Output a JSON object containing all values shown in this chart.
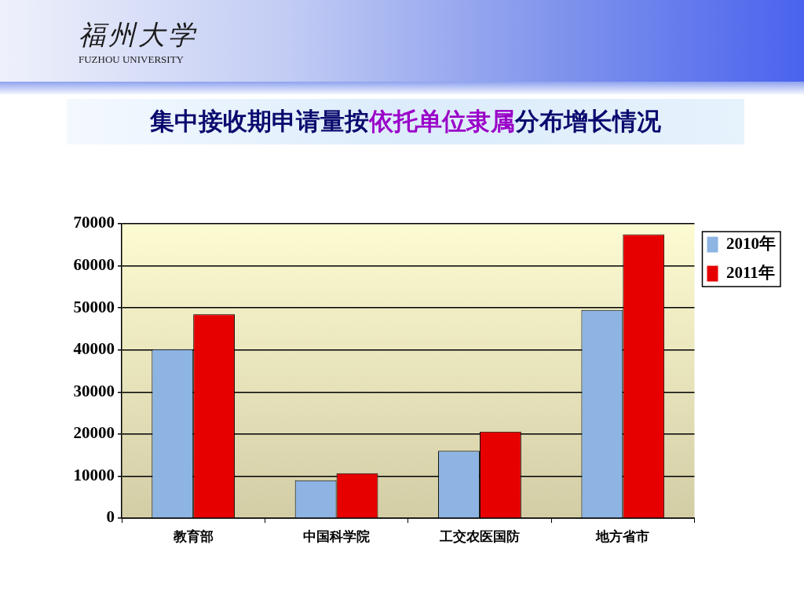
{
  "chart_data": {
    "type": "bar",
    "title": "集中接收期申请量按依托单位隶属分布增长情况",
    "annotations": [
      "福州大学",
      "FUZHOU UNIVERSITY"
    ],
    "categories": [
      "教育部",
      "中国科学院",
      "工交农医国防",
      "地方省市"
    ],
    "series": [
      {
        "name": "2010年",
        "color": "#8db4e2",
        "values": [
          40200,
          9000,
          16000,
          49500
        ]
      },
      {
        "name": "2011年",
        "color": "#e60000",
        "values": [
          48500,
          10700,
          20600,
          67500
        ]
      }
    ],
    "ylim": [
      0,
      70000
    ],
    "yticks": [
      0,
      10000,
      20000,
      30000,
      40000,
      50000,
      60000,
      70000
    ],
    "grid": "y",
    "legend": "top right"
  }
}
